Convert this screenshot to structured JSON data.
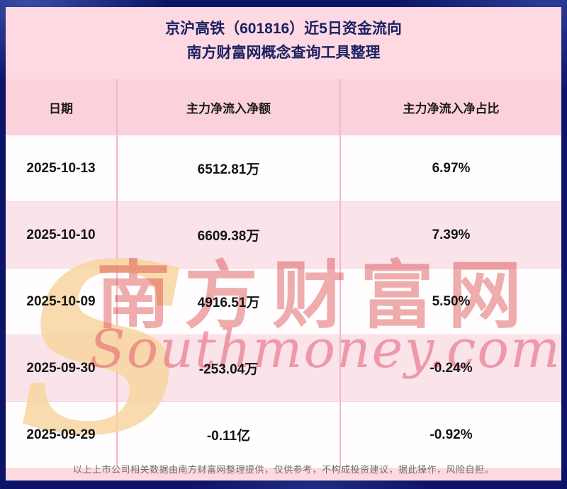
{
  "chart_data": {
    "type": "table",
    "title": "京沪高铁（601816）近5日资金流向",
    "subtitle": "南方财富网概念查询工具整理",
    "columns": [
      "日期",
      "主力净流入净额",
      "主力净流入净占比"
    ],
    "rows": [
      [
        "2025-10-13",
        "6512.81万",
        "6.97%"
      ],
      [
        "2025-10-10",
        "6609.38万",
        "7.39%"
      ],
      [
        "2025-10-09",
        "4916.51万",
        "5.50%"
      ],
      [
        "2025-09-30",
        "-253.04万",
        "-0.24%"
      ],
      [
        "2025-09-29",
        "-0.11亿",
        "-0.92%"
      ]
    ]
  },
  "watermark": {
    "initial": "S",
    "cn": "南方财富网",
    "en": "Southmoney.com"
  },
  "footer": {
    "disclaimer": "以上上市公司相关数据由南方财富网整理提供，仅供参考，不构成投资建议，据此操作，风险自担。"
  },
  "colors": {
    "page_bg": "#0c1468",
    "panel_bg": "#ffd9e2",
    "header_bg": "#fbd1dc",
    "stripe_bg": "#fbe3ea",
    "row_bg": "#fffdfe",
    "title_text": "#1a2164",
    "watermark_red": "#d83234",
    "watermark_gold": "#f7d5a0",
    "watermark_pink": "#e25c70"
  }
}
